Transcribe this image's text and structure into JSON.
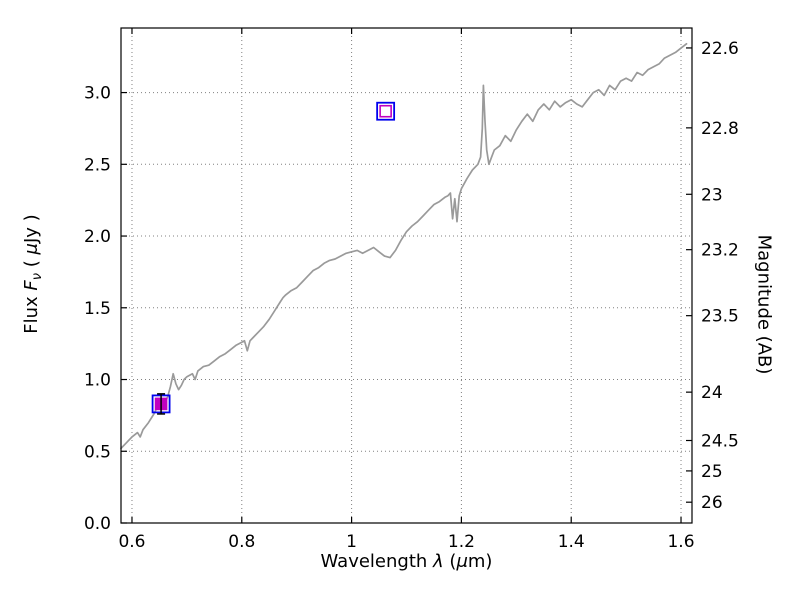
{
  "figure": {
    "background": "#ffffff"
  },
  "chart_data": {
    "type": "line",
    "title": "",
    "xlabel_parts": {
      "text1": "Wavelength  ",
      "lambda": "λ",
      "text2": " (",
      "mu": "μ",
      "text3": "m)"
    },
    "ylabel_left_parts": {
      "text1": "Flux  ",
      "F": "F",
      "nu": "ν",
      "text2": "  ( ",
      "mu": "μ",
      "text3": "Jy )"
    },
    "ylabel_right": "Magnitude (AB)",
    "xlim": [
      0.58,
      1.62
    ],
    "ylim": [
      0.0,
      3.45
    ],
    "grid": {
      "style": "dotted",
      "color": "#808080",
      "which": "both-axes"
    },
    "x_ticks": [
      {
        "v": 0.6,
        "label": "0.6"
      },
      {
        "v": 0.8,
        "label": "0.8"
      },
      {
        "v": 1.0,
        "label": "1"
      },
      {
        "v": 1.2,
        "label": "1.2"
      },
      {
        "v": 1.4,
        "label": "1.4"
      },
      {
        "v": 1.6,
        "label": "1.6"
      }
    ],
    "y_ticks_left": [
      {
        "v": 0.0,
        "label": "0.0"
      },
      {
        "v": 0.5,
        "label": "0.5"
      },
      {
        "v": 1.0,
        "label": "1.0"
      },
      {
        "v": 1.5,
        "label": "1.5"
      },
      {
        "v": 2.0,
        "label": "2.0"
      },
      {
        "v": 2.5,
        "label": "2.5"
      },
      {
        "v": 3.0,
        "label": "3.0"
      }
    ],
    "y_ticks_right": [
      {
        "mag": "22.6",
        "flux": 3.311
      },
      {
        "mag": "22.8",
        "flux": 2.754
      },
      {
        "mag": "23",
        "flux": 2.291
      },
      {
        "mag": "23.2",
        "flux": 1.905
      },
      {
        "mag": "23.5",
        "flux": 1.445
      },
      {
        "mag": "24",
        "flux": 0.912
      },
      {
        "mag": "24.5",
        "flux": 0.575
      },
      {
        "mag": "25",
        "flux": 0.363
      },
      {
        "mag": "26",
        "flux": 0.145
      }
    ],
    "series": [
      {
        "name": "spectrum",
        "color": "#9a9a9a",
        "linewidth": 1.7,
        "points": [
          [
            0.58,
            0.52
          ],
          [
            0.59,
            0.56
          ],
          [
            0.6,
            0.6
          ],
          [
            0.61,
            0.63
          ],
          [
            0.615,
            0.6
          ],
          [
            0.62,
            0.65
          ],
          [
            0.63,
            0.7
          ],
          [
            0.64,
            0.76
          ],
          [
            0.645,
            0.8
          ],
          [
            0.65,
            0.82
          ],
          [
            0.655,
            0.8
          ],
          [
            0.66,
            0.84
          ],
          [
            0.665,
            0.88
          ],
          [
            0.67,
            0.95
          ],
          [
            0.675,
            1.04
          ],
          [
            0.68,
            0.97
          ],
          [
            0.685,
            0.93
          ],
          [
            0.69,
            0.96
          ],
          [
            0.695,
            1.0
          ],
          [
            0.7,
            1.02
          ],
          [
            0.71,
            1.04
          ],
          [
            0.715,
            1.0
          ],
          [
            0.72,
            1.06
          ],
          [
            0.73,
            1.09
          ],
          [
            0.74,
            1.1
          ],
          [
            0.75,
            1.13
          ],
          [
            0.76,
            1.16
          ],
          [
            0.77,
            1.18
          ],
          [
            0.78,
            1.21
          ],
          [
            0.79,
            1.24
          ],
          [
            0.8,
            1.26
          ],
          [
            0.805,
            1.27
          ],
          [
            0.81,
            1.2
          ],
          [
            0.815,
            1.27
          ],
          [
            0.82,
            1.29
          ],
          [
            0.83,
            1.33
          ],
          [
            0.84,
            1.37
          ],
          [
            0.85,
            1.42
          ],
          [
            0.86,
            1.48
          ],
          [
            0.87,
            1.54
          ],
          [
            0.875,
            1.57
          ],
          [
            0.88,
            1.59
          ],
          [
            0.89,
            1.62
          ],
          [
            0.9,
            1.64
          ],
          [
            0.91,
            1.68
          ],
          [
            0.92,
            1.72
          ],
          [
            0.93,
            1.76
          ],
          [
            0.94,
            1.78
          ],
          [
            0.95,
            1.81
          ],
          [
            0.96,
            1.83
          ],
          [
            0.97,
            1.84
          ],
          [
            0.98,
            1.86
          ],
          [
            0.99,
            1.88
          ],
          [
            1.0,
            1.89
          ],
          [
            1.01,
            1.9
          ],
          [
            1.02,
            1.88
          ],
          [
            1.03,
            1.9
          ],
          [
            1.04,
            1.92
          ],
          [
            1.05,
            1.89
          ],
          [
            1.06,
            1.86
          ],
          [
            1.07,
            1.85
          ],
          [
            1.08,
            1.9
          ],
          [
            1.09,
            1.97
          ],
          [
            1.1,
            2.03
          ],
          [
            1.11,
            2.07
          ],
          [
            1.12,
            2.1
          ],
          [
            1.13,
            2.14
          ],
          [
            1.14,
            2.18
          ],
          [
            1.15,
            2.22
          ],
          [
            1.16,
            2.24
          ],
          [
            1.17,
            2.27
          ],
          [
            1.175,
            2.28
          ],
          [
            1.18,
            2.3
          ],
          [
            1.184,
            2.12
          ],
          [
            1.188,
            2.26
          ],
          [
            1.192,
            2.1
          ],
          [
            1.196,
            2.28
          ],
          [
            1.2,
            2.33
          ],
          [
            1.21,
            2.4
          ],
          [
            1.22,
            2.46
          ],
          [
            1.23,
            2.5
          ],
          [
            1.235,
            2.55
          ],
          [
            1.238,
            2.75
          ],
          [
            1.24,
            3.05
          ],
          [
            1.243,
            2.8
          ],
          [
            1.246,
            2.6
          ],
          [
            1.25,
            2.5
          ],
          [
            1.255,
            2.55
          ],
          [
            1.26,
            2.6
          ],
          [
            1.27,
            2.63
          ],
          [
            1.28,
            2.7
          ],
          [
            1.29,
            2.66
          ],
          [
            1.3,
            2.74
          ],
          [
            1.31,
            2.8
          ],
          [
            1.32,
            2.85
          ],
          [
            1.33,
            2.8
          ],
          [
            1.34,
            2.88
          ],
          [
            1.35,
            2.92
          ],
          [
            1.36,
            2.88
          ],
          [
            1.37,
            2.94
          ],
          [
            1.38,
            2.9
          ],
          [
            1.39,
            2.93
          ],
          [
            1.4,
            2.95
          ],
          [
            1.41,
            2.92
          ],
          [
            1.42,
            2.9
          ],
          [
            1.43,
            2.95
          ],
          [
            1.44,
            3.0
          ],
          [
            1.45,
            3.02
          ],
          [
            1.46,
            2.98
          ],
          [
            1.47,
            3.05
          ],
          [
            1.48,
            3.02
          ],
          [
            1.49,
            3.08
          ],
          [
            1.5,
            3.1
          ],
          [
            1.51,
            3.08
          ],
          [
            1.52,
            3.14
          ],
          [
            1.53,
            3.12
          ],
          [
            1.54,
            3.16
          ],
          [
            1.55,
            3.18
          ],
          [
            1.56,
            3.2
          ],
          [
            1.57,
            3.24
          ],
          [
            1.58,
            3.26
          ],
          [
            1.59,
            3.28
          ],
          [
            1.6,
            3.31
          ],
          [
            1.61,
            3.34
          ]
        ]
      }
    ],
    "photometry_points": [
      {
        "x": 0.653,
        "flux": 0.83,
        "err": 0.07,
        "edge_color": "#0000ee",
        "inner_color": "#c000c0",
        "filled": true,
        "errbar_color": "#000000"
      },
      {
        "x": 1.062,
        "flux": 2.87,
        "err": 0.0,
        "edge_color": "#0000ee",
        "inner_color": "#c000c0",
        "filled": false,
        "errbar_color": "#000000"
      }
    ]
  }
}
